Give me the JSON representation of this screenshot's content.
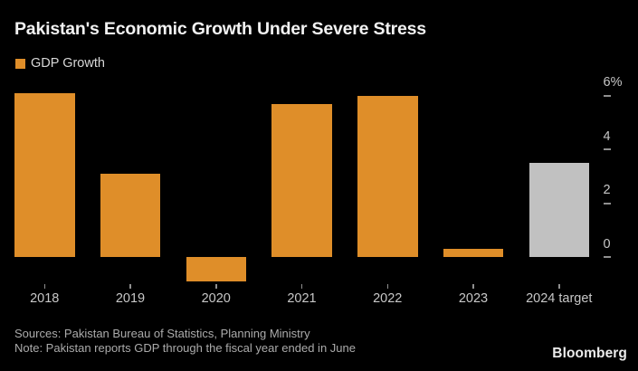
{
  "header": {
    "title": "Pakistan's Economic Growth Under Severe Stress",
    "legend": {
      "label": "GDP Growth",
      "swatch_icon": "square-swatch-icon"
    }
  },
  "chart_data": {
    "type": "bar",
    "categories": [
      "2018",
      "2019",
      "2020",
      "2021",
      "2022",
      "2023",
      "2024 target"
    ],
    "series": [
      {
        "name": "GDP Growth",
        "values": [
          6.1,
          3.1,
          -0.9,
          5.7,
          6.0,
          0.3,
          3.5
        ]
      }
    ],
    "title": "Pakistan's Economic Growth Under Severe Stress",
    "xlabel": "",
    "ylabel": "",
    "y_axis": {
      "side": "right",
      "ticks": [
        6,
        4,
        2,
        0
      ],
      "tick_labels": [
        "6%",
        "4",
        "2",
        "0"
      ],
      "ylim": [
        -1.1,
        6.5
      ]
    },
    "grid": false,
    "legend_position": "top-left",
    "bar_colors": [
      "#DF8E29",
      "#DF8E29",
      "#DF8E29",
      "#DF8E29",
      "#DF8E29",
      "#DF8E29",
      "#C1C1C1"
    ],
    "annotation": "2024 bar is a target value shown in gray"
  },
  "footer": {
    "sources": "Sources: Pakistan Bureau of Statistics, Planning Ministry",
    "note": "Note: Pakistan reports GDP through the fiscal year ended in June",
    "brand": "Bloomberg"
  },
  "colors": {
    "background": "#000000",
    "bar_orange": "#DF8E29",
    "bar_gray": "#C1C1C1",
    "title_text": "#F2F2F2",
    "axis_text": "#C7C7C7",
    "tick_mark": "#8F8F8F",
    "footer_text": "#ABABAB",
    "brand_text": "#ECECEC"
  }
}
